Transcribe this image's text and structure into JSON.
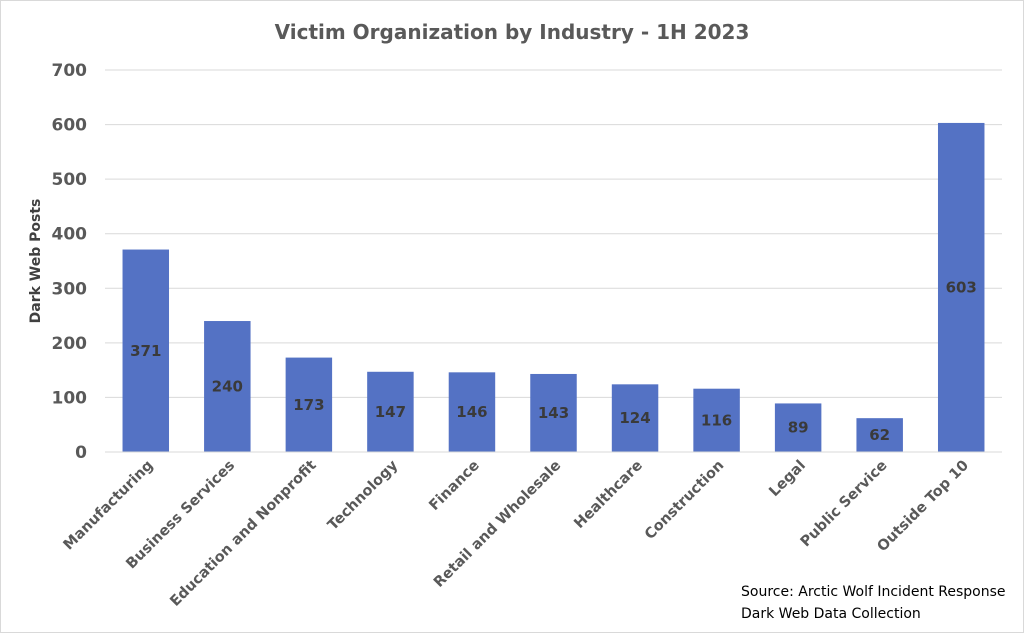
{
  "chart_data": {
    "type": "bar",
    "title": "Victim Organization by Industry - 1H 2023",
    "xlabel": "",
    "ylabel": "Dark Web Posts",
    "ylim": [
      0,
      700
    ],
    "yticks": [
      0,
      100,
      200,
      300,
      400,
      500,
      600,
      700
    ],
    "grid": true,
    "legend": "none",
    "categories": [
      "Manufacturing",
      "Business Services",
      "Education and Nonprofit",
      "Technology",
      "Finance",
      "Retail and Wholesale",
      "Healthcare",
      "Construction",
      "Legal",
      "Public Service",
      "Outside Top 10"
    ],
    "values": [
      371,
      240,
      173,
      147,
      146,
      143,
      124,
      116,
      89,
      62,
      603
    ],
    "bar_color": "#5472c4",
    "source": [
      "Source: Arctic Wolf Incident Response",
      "Dark Web Data Collection"
    ]
  }
}
